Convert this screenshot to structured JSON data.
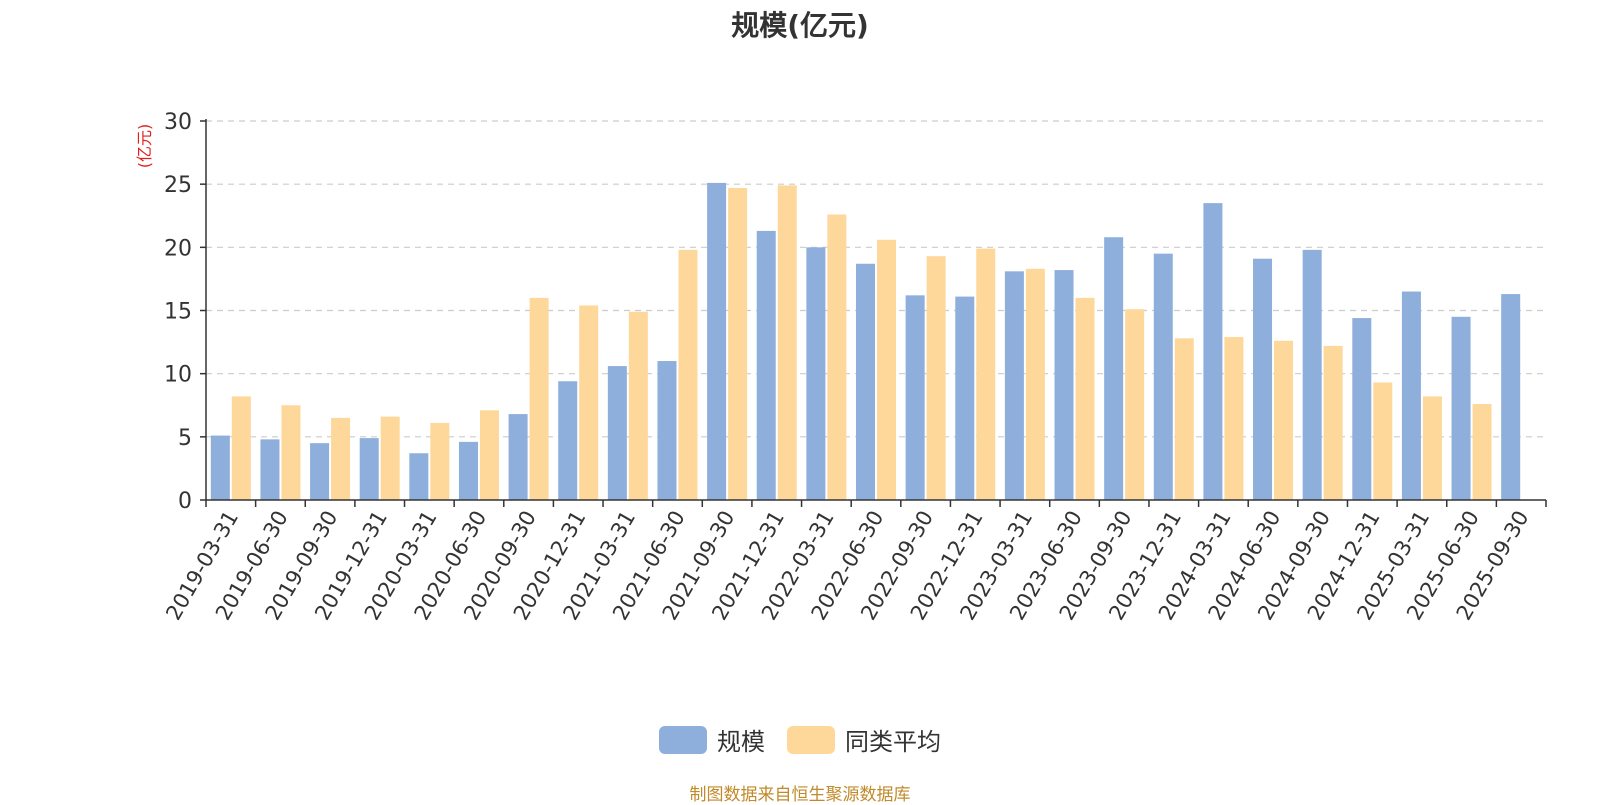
{
  "chart_data": {
    "type": "bar",
    "title": "规模(亿元)",
    "ylabel": "(亿元)",
    "xlabel": "",
    "ylim": [
      0,
      30
    ],
    "yticks": [
      0,
      5,
      10,
      15,
      20,
      25,
      30
    ],
    "grid": true,
    "legend_position": "bottom",
    "categories": [
      "2019-03-31",
      "2019-06-30",
      "2019-09-30",
      "2019-12-31",
      "2020-03-31",
      "2020-06-30",
      "2020-09-30",
      "2020-12-31",
      "2021-03-31",
      "2021-06-30",
      "2021-09-30",
      "2021-12-31",
      "2022-03-31",
      "2022-06-30",
      "2022-09-30",
      "2022-12-31",
      "2023-03-31",
      "2023-06-30",
      "2023-09-30",
      "2023-12-31",
      "2024-03-31",
      "2024-06-30",
      "2024-09-30",
      "2024-12-31",
      "2025-03-31",
      "2025-06-30",
      "2025-09-30"
    ],
    "series": [
      {
        "name": "规模",
        "color": "#8eaedb",
        "values": [
          5.1,
          4.8,
          4.5,
          4.9,
          3.7,
          4.6,
          6.8,
          9.4,
          10.6,
          11.0,
          25.1,
          21.3,
          20.0,
          18.7,
          16.2,
          16.1,
          18.1,
          18.2,
          20.8,
          19.5,
          23.5,
          19.1,
          19.8,
          14.4,
          16.5,
          14.5,
          16.3
        ]
      },
      {
        "name": "同类平均",
        "color": "#fdd89a",
        "values": [
          8.2,
          7.5,
          6.5,
          6.6,
          6.1,
          7.1,
          16.0,
          15.4,
          14.9,
          19.8,
          24.7,
          24.9,
          22.6,
          20.6,
          19.3,
          19.9,
          18.3,
          16.0,
          15.1,
          12.8,
          12.9,
          12.6,
          12.2,
          9.3,
          8.2,
          7.6,
          null
        ]
      }
    ]
  },
  "source_note": "制图数据来自恒生聚源数据库"
}
